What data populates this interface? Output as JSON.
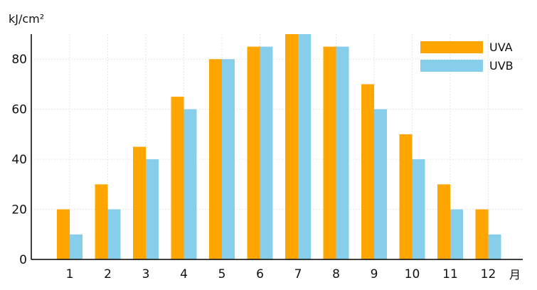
{
  "chart_data": {
    "type": "bar",
    "categories": [
      "1",
      "2",
      "3",
      "4",
      "5",
      "6",
      "7",
      "8",
      "9",
      "10",
      "11",
      "12"
    ],
    "series": [
      {
        "name": "UVA",
        "color": "#FFA500",
        "values": [
          20,
          30,
          45,
          65,
          80,
          85,
          90,
          85,
          70,
          50,
          30,
          20
        ]
      },
      {
        "name": "UVB",
        "color": "#87CEEB",
        "values": [
          10,
          20,
          40,
          60,
          80,
          85,
          90,
          85,
          60,
          40,
          20,
          10
        ]
      }
    ],
    "ylabel": "kJ/cm²",
    "xlabel": "月",
    "ylim": [
      0,
      90
    ],
    "yticks": [
      0,
      20,
      40,
      60,
      80
    ],
    "grid": true,
    "legend_position": "top-right"
  }
}
